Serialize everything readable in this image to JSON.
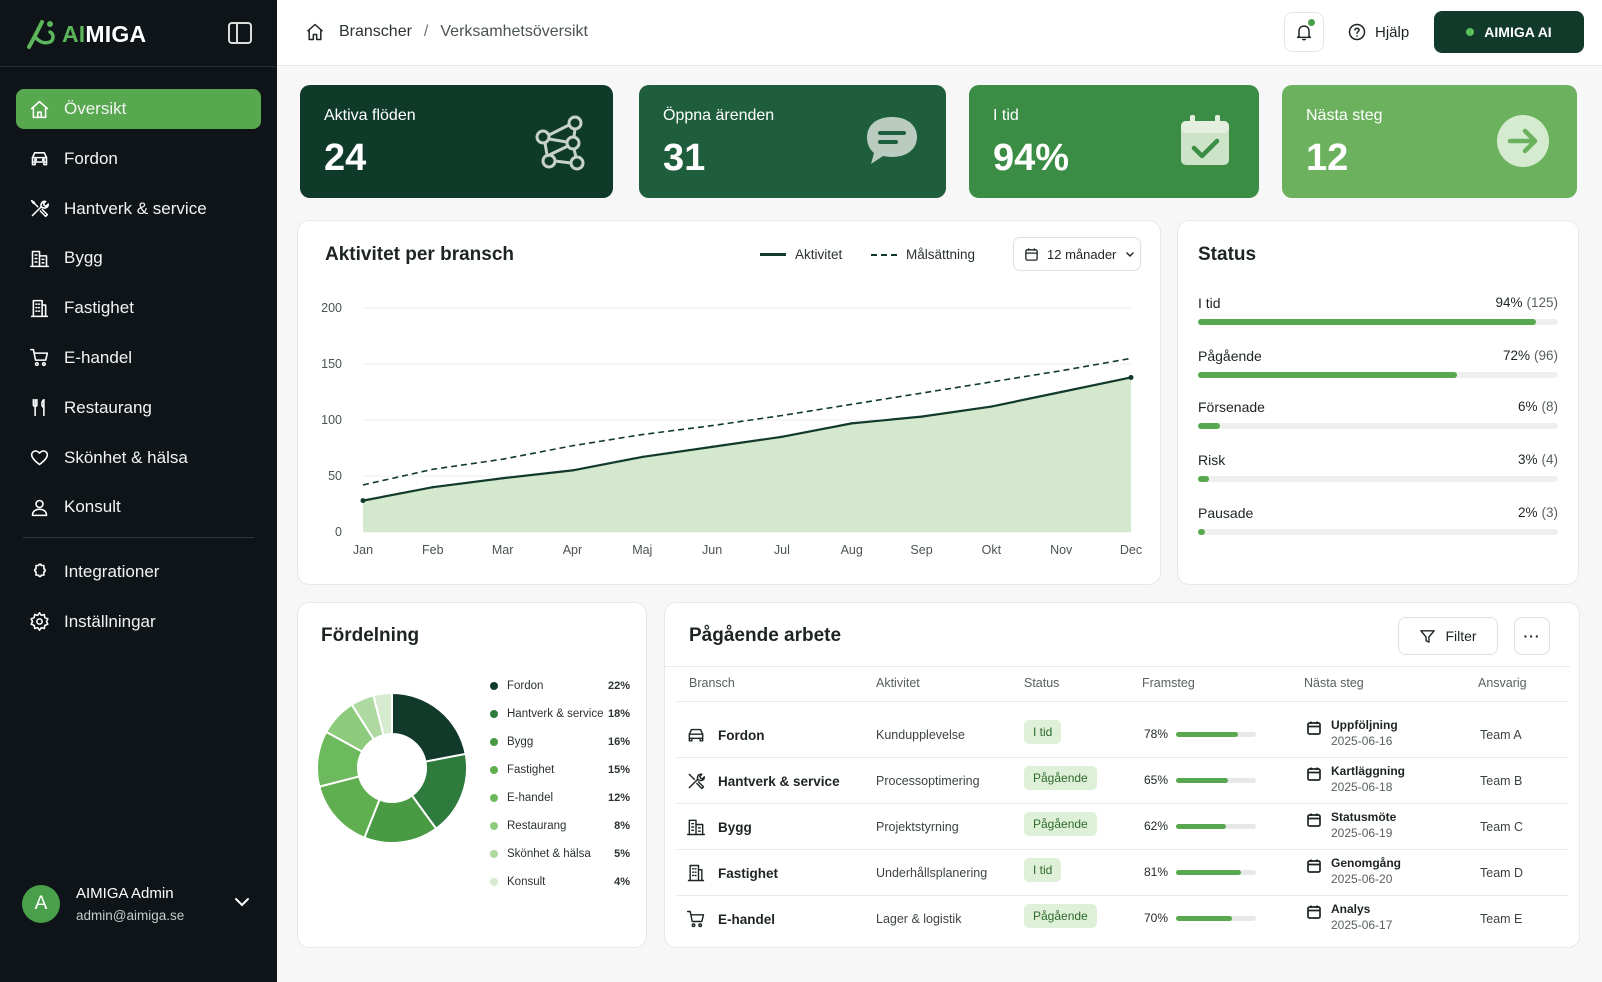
{
  "brand": {
    "prefix": "AI",
    "suffix": "MIGA"
  },
  "header": {
    "crumbs": [
      "Branscher",
      "Verksamhetsöversikt"
    ],
    "help_label": "Hjälp",
    "ai_button_label": "AIMIGA AI"
  },
  "sidebar": {
    "items": [
      {
        "label": "Översikt",
        "icon": "home-icon",
        "active": true
      },
      {
        "label": "Fordon",
        "icon": "car-icon"
      },
      {
        "label": "Hantverk & service",
        "icon": "tools-icon"
      },
      {
        "label": "Bygg",
        "icon": "building-icon"
      },
      {
        "label": "Fastighet",
        "icon": "office-building-icon"
      },
      {
        "label": "E-handel",
        "icon": "cart-icon"
      },
      {
        "label": "Restaurang",
        "icon": "cutlery-icon"
      },
      {
        "label": "Skönhet & hälsa",
        "icon": "heart-icon"
      },
      {
        "label": "Konsult",
        "icon": "person-icon"
      }
    ],
    "secondary": [
      {
        "label": "Integrationer",
        "icon": "puzzle-icon"
      },
      {
        "label": "Inställningar",
        "icon": "gear-icon"
      }
    ]
  },
  "user": {
    "initial": "A",
    "name": "AIMIGA Admin",
    "email": "admin@aimiga.se"
  },
  "kpis": [
    {
      "label": "Aktiva flöden",
      "value": "24",
      "icon": "network-icon",
      "color": "#0f3a2a"
    },
    {
      "label": "Öppna ärenden",
      "value": "31",
      "icon": "chat-icon",
      "color": "#1f5e3d"
    },
    {
      "label": "I tid",
      "value": "94%",
      "icon": "calendar-check-icon",
      "color": "#3b8d46"
    },
    {
      "label": "Nästa steg",
      "value": "12",
      "icon": "arrow-right-icon",
      "color": "#6cb25e"
    }
  ],
  "activity": {
    "title": "Aktivitet per bransch",
    "legend": {
      "actual": "Aktivitet",
      "target": "Målsättning"
    },
    "period": "12 månader"
  },
  "chart_data": {
    "type": "area",
    "title": "Aktivitet per bransch",
    "categories": [
      "Jan",
      "Feb",
      "Mar",
      "Apr",
      "Maj",
      "Jun",
      "Jul",
      "Aug",
      "Sep",
      "Okt",
      "Nov",
      "Dec"
    ],
    "series": [
      {
        "name": "Aktivitet",
        "values": [
          28,
          40,
          48,
          55,
          67,
          76,
          85,
          97,
          103,
          112,
          125,
          138
        ]
      },
      {
        "name": "Målsättning",
        "values": [
          42,
          56,
          65,
          77,
          87,
          95,
          104,
          114,
          124,
          134,
          144,
          155
        ]
      }
    ],
    "yticks": [
      0,
      50,
      100,
      150,
      200
    ],
    "ylim": [
      0,
      200
    ],
    "grid": true,
    "legend": "top-right",
    "colors": {
      "line": "#123a2b",
      "area": "#d3e8cd",
      "target": "#123a2b"
    }
  },
  "status": {
    "title": "Status",
    "rows": [
      {
        "label": "I tid",
        "pct": "94%",
        "count": "(125)",
        "value": 94
      },
      {
        "label": "Pågående",
        "pct": "72%",
        "count": "(96)",
        "value": 72
      },
      {
        "label": "Försenade",
        "pct": "6%",
        "count": "(8)",
        "value": 6
      },
      {
        "label": "Risk",
        "pct": "3%",
        "count": "(4)",
        "value": 3
      },
      {
        "label": "Pausade",
        "pct": "2%",
        "count": "(3)",
        "value": 2
      }
    ]
  },
  "distribution": {
    "title": "Fördelning",
    "items": [
      {
        "label": "Fordon",
        "pct": "22%",
        "value": 22,
        "color": "#123a2b"
      },
      {
        "label": "Hantverk & service",
        "pct": "18%",
        "value": 18,
        "color": "#2f7a3d"
      },
      {
        "label": "Bygg",
        "pct": "16%",
        "value": 16,
        "color": "#4a9a43"
      },
      {
        "label": "Fastighet",
        "pct": "15%",
        "value": 15,
        "color": "#5fae4f"
      },
      {
        "label": "E-handel",
        "pct": "12%",
        "value": 12,
        "color": "#6dba5e"
      },
      {
        "label": "Restaurang",
        "pct": "8%",
        "value": 8,
        "color": "#8ccb7c"
      },
      {
        "label": "Skönhet & hälsa",
        "pct": "5%",
        "value": 5,
        "color": "#aed9a1"
      },
      {
        "label": "Konsult",
        "pct": "4%",
        "value": 4,
        "color": "#d6ebcf"
      }
    ]
  },
  "work": {
    "title": "Pågående arbete",
    "filter_label": "Filter",
    "more_label": "···",
    "columns": [
      "Bransch",
      "Aktivitet",
      "Status",
      "Framsteg",
      "Nästa steg",
      "Ansvarig"
    ],
    "rows": [
      {
        "bransch": "Fordon",
        "icon": "car-icon",
        "aktivitet": "Kundupplevelse",
        "status": "I tid",
        "framsteg": "78%",
        "progress": 78,
        "next": "Uppföljning",
        "date": "2025-06-16",
        "team": "Team A"
      },
      {
        "bransch": "Hantverk & service",
        "icon": "tools-icon",
        "aktivitet": "Processoptimering",
        "status": "Pågående",
        "framsteg": "65%",
        "progress": 65,
        "next": "Kartläggning",
        "date": "2025-06-18",
        "team": "Team B"
      },
      {
        "bransch": "Bygg",
        "icon": "building-icon",
        "aktivitet": "Projektstyrning",
        "status": "Pågående",
        "framsteg": "62%",
        "progress": 62,
        "next": "Statusmöte",
        "date": "2025-06-19",
        "team": "Team C"
      },
      {
        "bransch": "Fastighet",
        "icon": "office-building-icon",
        "aktivitet": "Underhållsplanering",
        "status": "I tid",
        "framsteg": "81%",
        "progress": 81,
        "next": "Genomgång",
        "date": "2025-06-20",
        "team": "Team D"
      },
      {
        "bransch": "E-handel",
        "icon": "cart-icon",
        "aktivitet": "Lager & logistik",
        "status": "Pågående",
        "framsteg": "70%",
        "progress": 70,
        "next": "Analys",
        "date": "2025-06-17",
        "team": "Team E"
      }
    ]
  }
}
